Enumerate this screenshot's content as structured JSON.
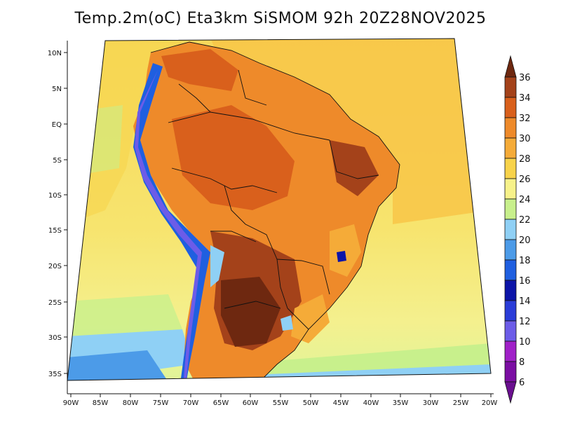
{
  "title": "Temp.2m(oC) Eta3km SiSMOM 92h 20Z28NOV2025",
  "map": {
    "variable": "2 m air temperature",
    "units": "oC",
    "region": "South America",
    "lon_labels": [
      "90W",
      "85W",
      "80W",
      "75W",
      "70W",
      "65W",
      "60W",
      "55W",
      "50W",
      "45W",
      "40W",
      "35W",
      "30W",
      "25W",
      "20W"
    ],
    "lat_labels": [
      "10N",
      "5N",
      "EQ",
      "5S",
      "10S",
      "15S",
      "20S",
      "25S",
      "30S",
      "35S"
    ]
  },
  "colorbar": {
    "levels": [
      "6",
      "8",
      "10",
      "12",
      "14",
      "16",
      "18",
      "20",
      "22",
      "24",
      "26",
      "28",
      "30",
      "32",
      "34",
      "36"
    ],
    "colors": [
      "#7b0ea3",
      "#a020c8",
      "#6c5ce8",
      "#2a3cd8",
      "#0c14a8",
      "#1f5fe0",
      "#4c9be8",
      "#8fd0f5",
      "#c8f08c",
      "#f7f28a",
      "#f8d34a",
      "#f5ab38",
      "#ee8a2a",
      "#d9601c",
      "#a4421a",
      "#6e2810"
    ]
  }
}
